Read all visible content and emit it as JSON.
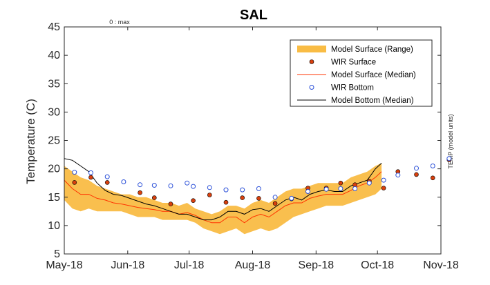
{
  "chart_data": {
    "type": "line",
    "title": "SAL",
    "ylabel": "Temperature (C)",
    "right_ylabel": "TEMP (model units)",
    "top_note": "0 : max",
    "xlim": [
      "2018-05-01",
      "2018-11-01"
    ],
    "ylim": [
      5,
      45
    ],
    "yticks": [
      5,
      10,
      15,
      20,
      25,
      30,
      35,
      40,
      45
    ],
    "xticks": [
      {
        "date": "2018-05-01",
        "label": "May-18"
      },
      {
        "date": "2018-06-01",
        "label": "Jun-18"
      },
      {
        "date": "2018-07-01",
        "label": "Jul-18"
      },
      {
        "date": "2018-08-01",
        "label": "Aug-18"
      },
      {
        "date": "2018-09-01",
        "label": "Sep-18"
      },
      {
        "date": "2018-10-01",
        "label": "Oct-18"
      },
      {
        "date": "2018-11-01",
        "label": "Nov-18"
      }
    ],
    "legend_position": "top-right",
    "colors": {
      "range": "#f9bc44",
      "surface_marker": "#d9400e",
      "surface_median": "#ff3300",
      "bottom_marker": "#2a4fd8",
      "bottom_median": "#000000"
    },
    "series": [
      {
        "name": "Model Surface (Range)",
        "kind": "range",
        "x": [
          "2018-05-01",
          "2018-05-05",
          "2018-05-09",
          "2018-05-13",
          "2018-05-17",
          "2018-05-21",
          "2018-05-25",
          "2018-05-29",
          "2018-06-02",
          "2018-06-06",
          "2018-06-10",
          "2018-06-14",
          "2018-06-18",
          "2018-06-22",
          "2018-06-26",
          "2018-06-30",
          "2018-07-04",
          "2018-07-08",
          "2018-07-12",
          "2018-07-16",
          "2018-07-20",
          "2018-07-24",
          "2018-07-28",
          "2018-08-01",
          "2018-08-05",
          "2018-08-09",
          "2018-08-13",
          "2018-08-17",
          "2018-08-21",
          "2018-08-25",
          "2018-08-29",
          "2018-09-02",
          "2018-09-06",
          "2018-09-10",
          "2018-09-14",
          "2018-09-18",
          "2018-09-22",
          "2018-09-26",
          "2018-09-30",
          "2018-10-03"
        ],
        "low": [
          14.5,
          13.0,
          12.5,
          13.0,
          12.5,
          12.5,
          12.5,
          12.5,
          12.0,
          11.5,
          11.5,
          11.5,
          11.0,
          11.0,
          11.0,
          11.0,
          10.5,
          9.5,
          9.0,
          8.5,
          9.0,
          9.5,
          8.5,
          9.0,
          9.5,
          9.0,
          9.5,
          10.5,
          11.5,
          12.0,
          12.5,
          13.0,
          13.5,
          13.5,
          13.5,
          14.0,
          14.5,
          15.0,
          15.5,
          16.5
        ],
        "high": [
          20.5,
          19.5,
          18.5,
          18.0,
          17.0,
          16.5,
          16.0,
          15.5,
          15.5,
          15.0,
          15.0,
          14.5,
          14.0,
          14.0,
          13.5,
          14.0,
          13.0,
          12.5,
          12.0,
          12.5,
          13.5,
          13.5,
          13.0,
          14.0,
          14.5,
          14.0,
          15.0,
          16.0,
          16.5,
          16.5,
          17.0,
          17.5,
          17.5,
          17.5,
          17.5,
          18.5,
          19.0,
          19.5,
          20.5,
          21.0
        ]
      },
      {
        "name": "WIR Surface",
        "kind": "marker",
        "x": [
          "2018-05-06",
          "2018-05-14",
          "2018-05-22",
          "2018-06-07",
          "2018-06-14",
          "2018-06-22",
          "2018-07-03",
          "2018-07-11",
          "2018-07-19",
          "2018-07-27",
          "2018-08-04",
          "2018-08-12",
          "2018-08-20",
          "2018-08-28",
          "2018-09-06",
          "2018-09-13",
          "2018-09-20",
          "2018-09-27",
          "2018-10-04",
          "2018-10-11",
          "2018-10-20",
          "2018-10-28",
          "2018-11-05"
        ],
        "y": [
          17.6,
          18.5,
          17.6,
          15.8,
          14.9,
          13.8,
          14.4,
          15.4,
          14.1,
          14.9,
          14.8,
          13.9,
          14.7,
          16.6,
          16.6,
          17.5,
          17.2,
          17.8,
          16.6,
          19.5,
          19.0,
          18.4,
          21.6
        ]
      },
      {
        "name": "Model Surface (Median)",
        "kind": "line",
        "x": [
          "2018-05-01",
          "2018-05-05",
          "2018-05-09",
          "2018-05-13",
          "2018-05-17",
          "2018-05-21",
          "2018-05-25",
          "2018-05-29",
          "2018-06-02",
          "2018-06-06",
          "2018-06-10",
          "2018-06-14",
          "2018-06-18",
          "2018-06-22",
          "2018-06-26",
          "2018-06-30",
          "2018-07-04",
          "2018-07-08",
          "2018-07-12",
          "2018-07-16",
          "2018-07-20",
          "2018-07-24",
          "2018-07-28",
          "2018-08-01",
          "2018-08-05",
          "2018-08-09",
          "2018-08-13",
          "2018-08-17",
          "2018-08-21",
          "2018-08-25",
          "2018-08-29",
          "2018-09-02",
          "2018-09-06",
          "2018-09-10",
          "2018-09-14",
          "2018-09-18",
          "2018-09-22",
          "2018-09-26",
          "2018-09-30",
          "2018-10-03"
        ],
        "y": [
          18.0,
          16.5,
          15.5,
          15.5,
          14.8,
          14.5,
          14.0,
          13.8,
          13.5,
          13.2,
          13.0,
          12.8,
          12.5,
          12.5,
          12.0,
          12.3,
          11.8,
          11.0,
          10.5,
          10.5,
          11.5,
          11.5,
          10.5,
          11.5,
          12.0,
          11.5,
          12.5,
          13.5,
          14.0,
          14.0,
          14.8,
          15.2,
          15.5,
          15.5,
          15.5,
          16.2,
          17.0,
          17.5,
          18.5,
          19.5
        ]
      },
      {
        "name": "WIR Bottom",
        "kind": "marker",
        "x": [
          "2018-05-06",
          "2018-05-14",
          "2018-05-22",
          "2018-05-30",
          "2018-06-07",
          "2018-06-14",
          "2018-06-22",
          "2018-06-30",
          "2018-07-03",
          "2018-07-11",
          "2018-07-19",
          "2018-07-27",
          "2018-08-04",
          "2018-08-12",
          "2018-08-20",
          "2018-08-28",
          "2018-09-06",
          "2018-09-13",
          "2018-09-20",
          "2018-09-27",
          "2018-10-04",
          "2018-10-11",
          "2018-10-20",
          "2018-10-28",
          "2018-11-05"
        ],
        "y": [
          19.4,
          19.3,
          18.6,
          17.7,
          17.2,
          17.1,
          17.0,
          17.5,
          16.9,
          16.7,
          16.3,
          16.3,
          16.5,
          15.0,
          14.8,
          16.0,
          16.4,
          16.5,
          16.5,
          17.5,
          18.0,
          18.9,
          20.1,
          20.5,
          21.8
        ]
      },
      {
        "name": "Model Bottom (Median)",
        "kind": "line",
        "x": [
          "2018-05-01",
          "2018-05-05",
          "2018-05-09",
          "2018-05-13",
          "2018-05-17",
          "2018-05-21",
          "2018-05-25",
          "2018-05-29",
          "2018-06-02",
          "2018-06-06",
          "2018-06-10",
          "2018-06-14",
          "2018-06-18",
          "2018-06-22",
          "2018-06-26",
          "2018-06-30",
          "2018-07-04",
          "2018-07-08",
          "2018-07-12",
          "2018-07-16",
          "2018-07-20",
          "2018-07-24",
          "2018-07-28",
          "2018-08-01",
          "2018-08-05",
          "2018-08-09",
          "2018-08-13",
          "2018-08-17",
          "2018-08-21",
          "2018-08-25",
          "2018-08-29",
          "2018-09-02",
          "2018-09-06",
          "2018-09-10",
          "2018-09-14",
          "2018-09-18",
          "2018-09-22",
          "2018-09-26",
          "2018-09-30",
          "2018-10-03"
        ],
        "y": [
          21.8,
          21.5,
          20.5,
          19.5,
          17.5,
          16.2,
          15.5,
          15.3,
          14.8,
          14.3,
          13.8,
          13.5,
          13.0,
          12.5,
          12.0,
          12.0,
          11.5,
          11.0,
          11.0,
          11.5,
          12.5,
          12.5,
          12.0,
          12.8,
          13.0,
          12.5,
          13.5,
          14.5,
          15.0,
          14.5,
          15.5,
          16.0,
          16.3,
          16.0,
          16.0,
          17.0,
          17.5,
          18.0,
          20.0,
          21.0
        ]
      }
    ]
  }
}
